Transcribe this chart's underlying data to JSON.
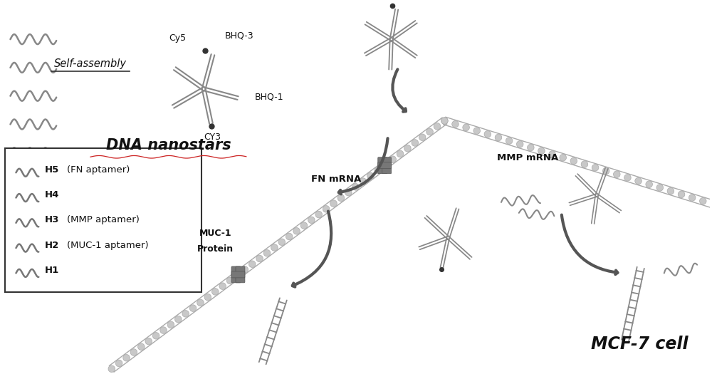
{
  "bg_color": "#ffffff",
  "title_dna": "DNA nanostars",
  "title_cell": "MCF-7 cell",
  "label_self_assembly": "Self-assembly",
  "label_cy5": "Cy5",
  "label_bhq3": "BHQ-3",
  "label_bhq1": "BHQ-1",
  "label_cy3": "CY3",
  "label_muc1_line1": "MUC-1",
  "label_muc1_line2": "Protein",
  "label_fn_mrna": "FN mRNA",
  "label_mmp_mrna": "MMP mRNA",
  "legend_items": [
    [
      "H5",
      "(FN aptamer)"
    ],
    [
      "H4",
      ""
    ],
    [
      "H3",
      "(MMP aptamer)"
    ],
    [
      "H2",
      "(MUC-1 aptamer)"
    ],
    [
      "H1",
      ""
    ]
  ],
  "helix_color": "#c0c0c0",
  "helix_ec": "#aaaaaa",
  "star_color": "#888888",
  "arrow_color": "#555555",
  "dark_arrow_color": "#444444",
  "protein_color": "#777777",
  "text_dark": "#111111"
}
